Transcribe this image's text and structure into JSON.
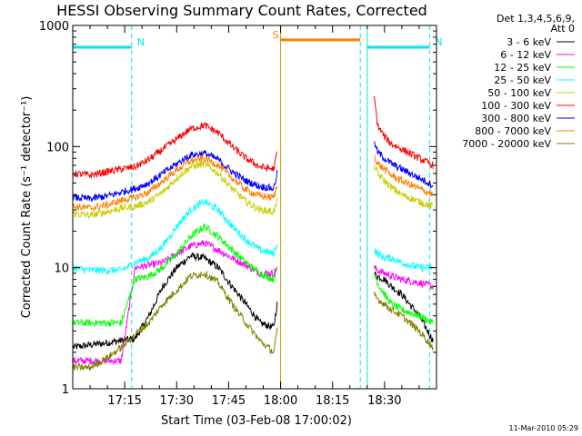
{
  "chart_data": {
    "type": "line",
    "title": "HESSI Observing Summary Count Rates, Corrected",
    "xlabel": "Start Time (03-Feb-08 17:00:02)",
    "ylabel": "Corrected Count Rate (s⁻¹ detector⁻¹)",
    "yscale": "log",
    "ylim": [
      1,
      1000
    ],
    "xlim_minutes": [
      0,
      105
    ],
    "xticks": [
      {
        "t": 15,
        "label": "17:15"
      },
      {
        "t": 30,
        "label": "17:30"
      },
      {
        "t": 45,
        "label": "17:45"
      },
      {
        "t": 60,
        "label": "18:00"
      },
      {
        "t": 75,
        "label": "18:15"
      },
      {
        "t": 90,
        "label": "18:30"
      }
    ],
    "yticks": [
      {
        "v": 1,
        "label": "1"
      },
      {
        "v": 10,
        "label": "10"
      },
      {
        "v": 100,
        "label": "100"
      },
      {
        "v": 1000,
        "label": "1000"
      }
    ],
    "legend_header": [
      "Det 1,3,4,5,6,9,",
      "Att 0"
    ],
    "legend_position": "right",
    "series": [
      {
        "name": "3 - 6 keV",
        "color": "#000000",
        "segments": [
          {
            "x": [
              0,
              5,
              10,
              14,
              18,
              22,
              26,
              30,
              34,
              38,
              42,
              46,
              50,
              54,
              58,
              59
            ],
            "y": [
              2.2,
              2.3,
              2.4,
              2.5,
              2.6,
              4,
              7,
              10,
              12.5,
              12,
              10,
              7,
              5,
              3.5,
              3.2,
              5
            ]
          },
          {
            "x": [
              87,
              88,
              90,
              92,
              95,
              100,
              104
            ],
            "y": [
              9,
              8.5,
              8,
              7,
              6,
              4,
              2.5
            ]
          }
        ]
      },
      {
        "name": "6 - 12 keV",
        "color": "#ff00ff",
        "segments": [
          {
            "x": [
              0,
              5,
              10,
              14,
              18,
              22,
              26,
              30,
              34,
              38,
              42,
              46,
              50,
              54,
              58,
              59
            ],
            "y": [
              1.7,
              1.7,
              1.7,
              1.7,
              10,
              10.5,
              11,
              13,
              15,
              16,
              14,
              12,
              10.5,
              9,
              9,
              10
            ]
          },
          {
            "x": [
              87,
              88,
              90,
              92,
              95,
              100,
              104
            ],
            "y": [
              10,
              9.5,
              9,
              8.5,
              8,
              7.5,
              7
            ]
          }
        ]
      },
      {
        "name": "12 - 25 keV",
        "color": "#00ff00",
        "segments": [
          {
            "x": [
              0,
              5,
              10,
              14,
              18,
              22,
              26,
              30,
              34,
              38,
              42,
              46,
              50,
              54,
              58,
              59
            ],
            "y": [
              3.5,
              3.5,
              3.5,
              3.5,
              8,
              8.5,
              10,
              13,
              18,
              22,
              18,
              14,
              11,
              9,
              8,
              10
            ]
          },
          {
            "x": [
              87,
              88,
              90,
              92,
              95,
              100,
              104
            ],
            "y": [
              9,
              7.5,
              6,
              5,
              4.5,
              4,
              3.5
            ]
          }
        ]
      },
      {
        "name": "25 - 50 keV",
        "color": "#00ffff",
        "segments": [
          {
            "x": [
              0,
              5,
              10,
              14,
              18,
              22,
              26,
              30,
              34,
              38,
              42,
              46,
              50,
              54,
              58,
              59
            ],
            "y": [
              10,
              9.5,
              9.5,
              9.5,
              11,
              12,
              15,
              22,
              30,
              35,
              30,
              22,
              17,
              14,
              13,
              16
            ]
          },
          {
            "x": [
              87,
              88,
              90,
              92,
              95,
              100,
              104
            ],
            "y": [
              14,
              13,
              12,
              12,
              11,
              10,
              10
            ]
          }
        ]
      },
      {
        "name": "50 - 100 keV",
        "color": "#cccc00",
        "segments": [
          {
            "x": [
              0,
              5,
              10,
              14,
              18,
              22,
              26,
              30,
              34,
              38,
              42,
              46,
              50,
              54,
              58,
              59
            ],
            "y": [
              28,
              27,
              29,
              31,
              32,
              35,
              42,
              55,
              68,
              72,
              60,
              45,
              35,
              30,
              29,
              35
            ]
          },
          {
            "x": [
              87,
              88,
              90,
              92,
              95,
              100,
              104
            ],
            "y": [
              70,
              60,
              52,
              46,
              40,
              35,
              32
            ]
          }
        ]
      },
      {
        "name": "100 - 300 keV",
        "color": "#ff0000",
        "segments": [
          {
            "x": [
              0,
              5,
              10,
              14,
              18,
              22,
              26,
              30,
              34,
              38,
              42,
              46,
              50,
              54,
              58,
              59
            ],
            "y": [
              60,
              58,
              62,
              65,
              68,
              78,
              95,
              115,
              140,
              150,
              130,
              100,
              80,
              68,
              65,
              90
            ]
          },
          {
            "x": [
              87,
              88,
              90,
              92,
              95,
              100,
              104
            ],
            "y": [
              260,
              150,
              120,
              105,
              95,
              80,
              70
            ]
          }
        ]
      },
      {
        "name": "300 - 800 keV",
        "color": "#0000ff",
        "segments": [
          {
            "x": [
              0,
              5,
              10,
              14,
              18,
              22,
              26,
              30,
              34,
              38,
              42,
              46,
              50,
              54,
              58,
              59
            ],
            "y": [
              38,
              37,
              39,
              42,
              45,
              50,
              60,
              72,
              85,
              88,
              78,
              62,
              52,
              47,
              45,
              60
            ]
          },
          {
            "x": [
              87,
              88,
              90,
              92,
              95,
              100,
              104
            ],
            "y": [
              110,
              90,
              80,
              72,
              65,
              55,
              48
            ]
          }
        ]
      },
      {
        "name": "800 - 7000 keV",
        "color": "#ff8000",
        "segments": [
          {
            "x": [
              0,
              5,
              10,
              14,
              18,
              22,
              26,
              30,
              34,
              38,
              42,
              46,
              50,
              54,
              58,
              59
            ],
            "y": [
              32,
              31,
              33,
              36,
              38,
              42,
              52,
              64,
              76,
              80,
              70,
              55,
              44,
              39,
              38,
              48
            ]
          },
          {
            "x": [
              87,
              88,
              90,
              92,
              95,
              100,
              104
            ],
            "y": [
              85,
              72,
              65,
              58,
              52,
              45,
              40
            ]
          }
        ]
      },
      {
        "name": "7000 - 20000 keV",
        "color": "#808000",
        "segments": [
          {
            "x": [
              0,
              5,
              10,
              14,
              18,
              22,
              26,
              30,
              34,
              38,
              42,
              46,
              50,
              54,
              58,
              59
            ],
            "y": [
              1.5,
              1.5,
              1.8,
              2.2,
              2.8,
              3.5,
              5,
              6.5,
              8.5,
              9,
              7.5,
              5,
              3.5,
              2.5,
              2,
              3
            ]
          },
          {
            "x": [
              87,
              88,
              90,
              92,
              95,
              100,
              104
            ],
            "y": [
              6,
              5.5,
              5,
              4.5,
              4,
              3,
              2.2
            ]
          }
        ]
      }
    ],
    "annotations": [
      {
        "type": "flag",
        "label": "N",
        "color": "#00e5ee",
        "x_start": 0,
        "x_end": 17,
        "y": 660
      },
      {
        "type": "flag",
        "label": "N",
        "color": "#00e5ee",
        "x_start": 85,
        "x_end": 103,
        "y": 660
      },
      {
        "type": "flag",
        "label": "S",
        "color": "#ff8000",
        "x_start": 60,
        "x_end": 83,
        "y": 760
      },
      {
        "type": "vline",
        "color": "#00e5ee",
        "x": 0,
        "dashed": false
      },
      {
        "type": "vline",
        "color": "#00e5ee",
        "x": 17,
        "dashed": true
      },
      {
        "type": "vline",
        "color": "#cc9900",
        "x": 60,
        "dashed": false
      },
      {
        "type": "vline",
        "color": "#00e5ee",
        "x": 83,
        "dashed": true
      },
      {
        "type": "vline",
        "color": "#00e5ee",
        "x": 85,
        "dashed": false
      },
      {
        "type": "vline",
        "color": "#00e5ee",
        "x": 103,
        "dashed": true
      }
    ],
    "grid": false
  },
  "footer": {
    "timestamp": "11-Mar-2010 05:29"
  }
}
